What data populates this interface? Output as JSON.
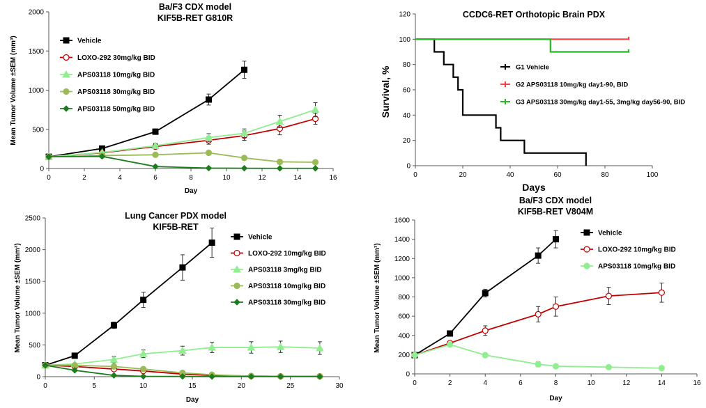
{
  "chart_data": [
    {
      "type": "line",
      "title": "Ba/F3 CDX model",
      "subtitle": "KIF5B-RET G810R",
      "xlabel": "Day",
      "ylabel": "Mean Tumor Volume ±SEM (mm³)",
      "xlim": [
        0,
        16
      ],
      "ylim": [
        0,
        2000
      ],
      "xticks": [
        0,
        2,
        4,
        6,
        8,
        10,
        12,
        14,
        16
      ],
      "yticks": [
        0,
        500,
        1000,
        1500,
        2000
      ],
      "grid": false,
      "legend_position": "top-left",
      "series": [
        {
          "name": "Vehicle",
          "color": "#000000",
          "marker": "square",
          "filled": true,
          "x": [
            0,
            3,
            6,
            9,
            11
          ],
          "y": [
            150,
            255,
            470,
            880,
            1260
          ],
          "err": [
            0,
            0,
            35,
            70,
            110
          ]
        },
        {
          "name": "LOXO-292 30mg/kg BID",
          "color": "#c00000",
          "marker": "circle",
          "filled": false,
          "x": [
            0,
            3,
            6,
            9,
            11,
            13,
            15
          ],
          "y": [
            150,
            200,
            280,
            360,
            420,
            510,
            635
          ],
          "err": [
            0,
            0,
            30,
            50,
            60,
            80,
            70
          ]
        },
        {
          "name": "APS03118  10mg/kg BID",
          "color": "#90ee90",
          "marker": "triangle",
          "filled": true,
          "x": [
            0,
            3,
            6,
            9,
            11,
            13,
            15
          ],
          "y": [
            150,
            205,
            290,
            395,
            450,
            600,
            750
          ],
          "err": [
            0,
            0,
            30,
            50,
            55,
            80,
            90
          ]
        },
        {
          "name": "APS03118  30mg/kg BID",
          "color": "#9bbb59",
          "marker": "circle",
          "filled": true,
          "x": [
            0,
            3,
            6,
            9,
            11,
            13,
            15
          ],
          "y": [
            150,
            165,
            175,
            200,
            135,
            85,
            80
          ],
          "err": [
            0,
            0,
            15,
            20,
            25,
            10,
            8
          ]
        },
        {
          "name": "APS03118  50mg/kg BID",
          "color": "#1e7b1e",
          "marker": "diamond",
          "filled": true,
          "x": [
            0,
            3,
            6,
            9,
            11,
            13,
            15
          ],
          "y": [
            150,
            155,
            25,
            5,
            3,
            2,
            2
          ],
          "err": [
            0,
            0,
            0,
            0,
            0,
            0,
            0
          ]
        }
      ]
    },
    {
      "type": "line",
      "title": "CCDC6-RET Orthotopic Brain PDX",
      "subtitle": "",
      "xlabel": "Days",
      "ylabel": "Survival, %",
      "xlim": [
        0,
        100
      ],
      "ylim": [
        0,
        120
      ],
      "xticks": [
        0,
        20,
        40,
        60,
        80,
        100
      ],
      "yticks": [
        0,
        20,
        40,
        60,
        80,
        100,
        120
      ],
      "grid": false,
      "legend_position": "center-right",
      "series": [
        {
          "name": "G1 Vehicle",
          "color": "#000000",
          "step": true,
          "x": [
            0,
            8,
            8,
            12,
            12,
            16,
            16,
            18,
            18,
            20,
            20,
            34,
            34,
            36,
            36,
            46,
            46,
            72,
            72
          ],
          "y": [
            100,
            100,
            90,
            90,
            80,
            80,
            70,
            70,
            60,
            60,
            40,
            40,
            30,
            30,
            20,
            20,
            10,
            10,
            0
          ]
        },
        {
          "name": "G2  APS03118 10mg/kg day1-90, BID",
          "color": "#ff4040",
          "step": true,
          "x": [
            0,
            90,
            90
          ],
          "y": [
            100,
            100,
            102
          ]
        },
        {
          "name": "G3  APS03118 30mg/kg day1-55, 3mg/kg day56-90, BID",
          "color": "#22bb22",
          "step": true,
          "x": [
            0,
            57,
            57,
            90,
            90
          ],
          "y": [
            100,
            100,
            90,
            90,
            92
          ]
        }
      ]
    },
    {
      "type": "line",
      "title": "Lung Cancer PDX model",
      "subtitle": "KIF5B-RET",
      "xlabel": "Day",
      "ylabel": "Mean Tumor Volume ±SEM (mm³)",
      "xlim": [
        0,
        30
      ],
      "ylim": [
        0,
        2500
      ],
      "xticks": [
        0,
        5,
        10,
        15,
        20,
        25,
        30
      ],
      "yticks": [
        0,
        500,
        1000,
        1500,
        2000,
        2500
      ],
      "grid": false,
      "legend_position": "top-right",
      "series": [
        {
          "name": "Vehicle",
          "color": "#000000",
          "marker": "square",
          "filled": true,
          "x": [
            0,
            3,
            7,
            10,
            14,
            17
          ],
          "y": [
            180,
            330,
            810,
            1210,
            1720,
            2110
          ],
          "err": [
            0,
            0,
            50,
            120,
            200,
            230
          ]
        },
        {
          "name": "LOXO-292 10mg/kg BID",
          "color": "#c00000",
          "marker": "circle",
          "filled": false,
          "x": [
            0,
            3,
            7,
            10,
            14,
            17,
            21,
            24,
            28
          ],
          "y": [
            180,
            160,
            120,
            90,
            40,
            20,
            10,
            5,
            5
          ],
          "err": [
            0,
            0,
            15,
            15,
            10,
            5,
            0,
            0,
            0
          ]
        },
        {
          "name": "APS03118  3mg/kg BID",
          "color": "#90ee90",
          "marker": "triangle",
          "filled": true,
          "x": [
            0,
            3,
            7,
            10,
            14,
            17,
            21,
            24,
            28
          ],
          "y": [
            180,
            200,
            270,
            360,
            410,
            460,
            460,
            470,
            450
          ],
          "err": [
            0,
            0,
            50,
            60,
            70,
            80,
            90,
            90,
            100
          ]
        },
        {
          "name": "APS03118  10mg/kg BID",
          "color": "#9bbb59",
          "marker": "circle",
          "filled": true,
          "x": [
            0,
            3,
            7,
            10,
            14,
            17,
            21,
            24,
            28
          ],
          "y": [
            180,
            180,
            160,
            120,
            60,
            30,
            10,
            5,
            5
          ],
          "err": [
            0,
            0,
            20,
            20,
            15,
            10,
            0,
            0,
            0
          ]
        },
        {
          "name": "APS03118  30mg/kg BID",
          "color": "#1e7b1e",
          "marker": "diamond",
          "filled": true,
          "x": [
            0,
            3,
            7,
            10,
            14,
            17,
            21,
            24,
            28
          ],
          "y": [
            180,
            100,
            20,
            5,
            3,
            2,
            2,
            2,
            2
          ],
          "err": [
            0,
            0,
            0,
            0,
            0,
            0,
            0,
            0,
            0
          ]
        }
      ]
    },
    {
      "type": "line",
      "title": "Ba/F3 CDX model",
      "subtitle": "KIF5B-RET V804M",
      "xlabel": "Day",
      "ylabel": "Mean Tumor Volume ±SEM (mm³)",
      "xlim": [
        0,
        16
      ],
      "ylim": [
        0,
        1600
      ],
      "xticks": [
        0,
        2,
        4,
        6,
        8,
        10,
        12,
        14,
        16
      ],
      "yticks": [
        0,
        200,
        400,
        600,
        800,
        1000,
        1200,
        1400,
        1600
      ],
      "grid": false,
      "legend_position": "top-right",
      "series": [
        {
          "name": "Vehicle",
          "color": "#000000",
          "marker": "square",
          "filled": true,
          "x": [
            0,
            2,
            4,
            7,
            8
          ],
          "y": [
            195,
            420,
            840,
            1230,
            1400
          ],
          "err": [
            0,
            0,
            40,
            80,
            90
          ]
        },
        {
          "name": "LOXO-292  10mg/kg BID",
          "color": "#c00000",
          "marker": "circle",
          "filled": false,
          "x": [
            0,
            2,
            4,
            7,
            8,
            11,
            14
          ],
          "y": [
            195,
            320,
            450,
            620,
            700,
            810,
            845
          ],
          "err": [
            0,
            0,
            50,
            80,
            100,
            90,
            100
          ]
        },
        {
          "name": "APS03118  10mg/kg BID",
          "color": "#90ee90",
          "marker": "circle",
          "filled": true,
          "x": [
            0,
            2,
            4,
            7,
            8,
            11,
            14
          ],
          "y": [
            195,
            305,
            195,
            100,
            80,
            70,
            60
          ],
          "err": [
            0,
            10,
            20,
            25,
            15,
            20,
            15
          ]
        }
      ]
    }
  ]
}
